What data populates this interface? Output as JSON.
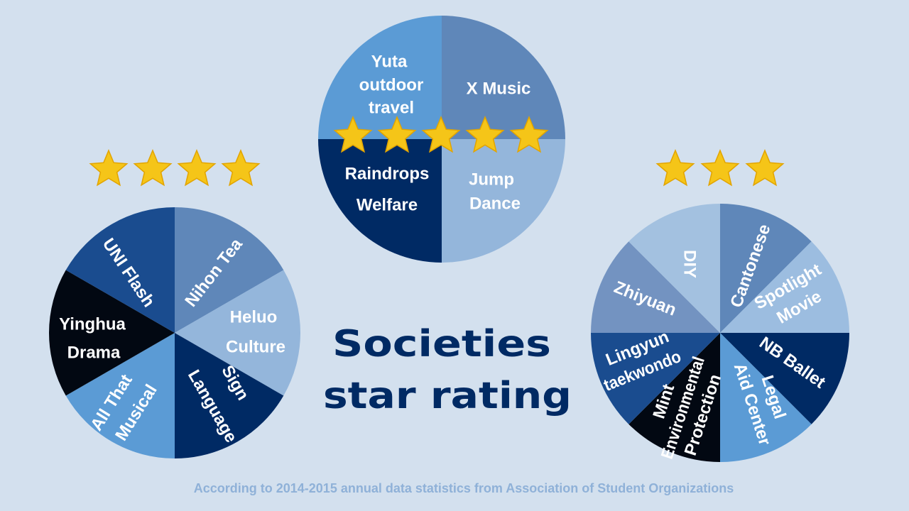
{
  "title_line1": "Societies",
  "title_line2": "star rating",
  "footer": "According to 2014-2015 annual data statistics from Association of Student Organizations",
  "colors": {
    "background": "#d3e0ee",
    "title": "#002a64",
    "footer": "#8fb1d8",
    "star": "#f5c518",
    "label": "#ffffff"
  },
  "chart_data": [
    {
      "type": "pie",
      "rating_stars": 5,
      "categories": [
        "X Music",
        "Jump Dance",
        "Raindrops Welfare",
        "Yuta outdoor travel"
      ],
      "label_lines": [
        [
          "X Music"
        ],
        [
          "Jump",
          "Dance"
        ],
        [
          "Raindrops",
          "Welfare"
        ],
        [
          "Yuta",
          "outdoor",
          "travel"
        ]
      ],
      "values": [
        1,
        1,
        1,
        1
      ],
      "colors": [
        "#5f87b9",
        "#94b6db",
        "#002a64",
        "#5b9bd5"
      ]
    },
    {
      "type": "pie",
      "rating_stars": 4,
      "categories": [
        "Nihon Tea",
        "Heluo Culture",
        "Sign Language",
        "All That Musical",
        "Yinghua Drama",
        "UNI Flash"
      ],
      "label_lines": [
        [
          "Nihon Tea"
        ],
        [
          "Heluo",
          "Culture"
        ],
        [
          "Sign",
          "Language"
        ],
        [
          "All That",
          "Musical"
        ],
        [
          "Yinghua",
          "Drama"
        ],
        [
          "UNI Flash"
        ]
      ],
      "values": [
        1,
        1,
        1,
        1,
        1,
        1
      ],
      "colors": [
        "#5f87b9",
        "#94b6db",
        "#002a64",
        "#5b9bd5",
        "#020812",
        "#1a4c8f"
      ]
    },
    {
      "type": "pie",
      "rating_stars": 3,
      "categories": [
        "Cantonese",
        "Spotlight Movie",
        "NB Ballet",
        "Legal Aid Center",
        "Mint Environmental Protection",
        "Lingyun taekwondo",
        "Zhiyuan",
        "DIY"
      ],
      "label_lines": [
        [
          "Cantonese"
        ],
        [
          "Spotlight",
          "Movie"
        ],
        [
          "NB Ballet"
        ],
        [
          "Legal",
          "Aid Center"
        ],
        [
          "Mint",
          "Environmental",
          "Protection"
        ],
        [
          "Lingyun",
          "taekwondo"
        ],
        [
          "Zhiyuan"
        ],
        [
          "DIY"
        ]
      ],
      "values": [
        1,
        1,
        1,
        1,
        1,
        1,
        1,
        1
      ],
      "colors": [
        "#5f87b9",
        "#9cbde0",
        "#002a64",
        "#5b9bd5",
        "#020812",
        "#1a4c8f",
        "#7393c1",
        "#a3c1e0"
      ]
    }
  ]
}
